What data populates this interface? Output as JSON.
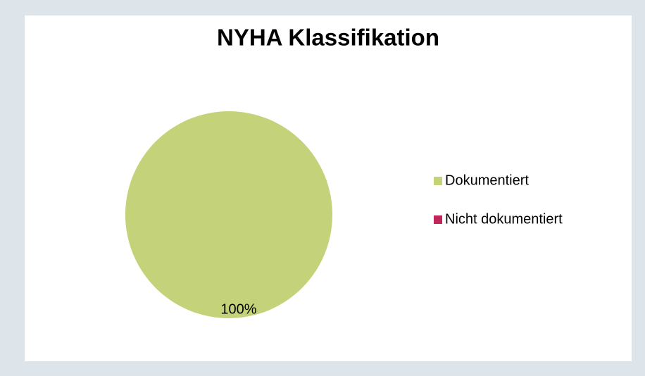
{
  "chart_data": {
    "type": "pie",
    "title": "NYHA Klassifikation",
    "categories": [
      "Dokumentiert",
      "Nicht dokumentiert"
    ],
    "values": [
      100,
      0
    ],
    "value_labels": [
      "100%",
      null
    ],
    "colors": [
      "#c4d37a",
      "#c0265a"
    ],
    "legend": "right"
  }
}
